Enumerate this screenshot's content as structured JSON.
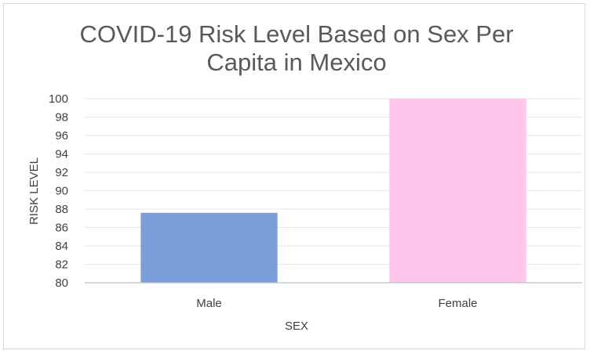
{
  "chart_data": {
    "type": "bar",
    "title_lines": [
      "COVID-19 Risk Level Based on Sex Per",
      "Capita in Mexico"
    ],
    "xlabel": "SEX",
    "ylabel": "RISK LEVEL",
    "categories": [
      "Male",
      "Female"
    ],
    "values": [
      87.6,
      100
    ],
    "ylim": [
      80,
      100
    ],
    "yticks": [
      "80",
      "82",
      "84",
      "86",
      "88",
      "90",
      "92",
      "94",
      "96",
      "98",
      "100"
    ],
    "bar_colors": [
      "#7a9fdb",
      "#ffc5ea"
    ],
    "grid": true
  }
}
